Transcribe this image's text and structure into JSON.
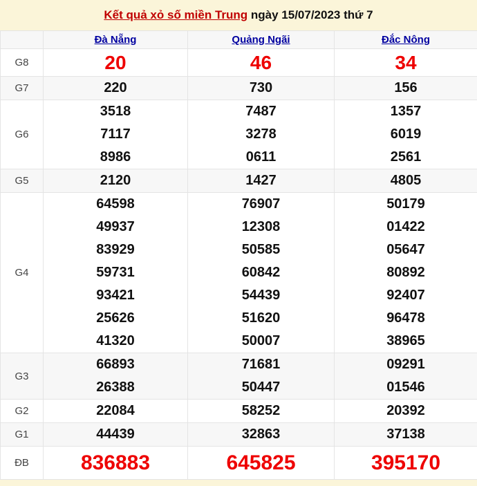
{
  "title": {
    "link_text": "Kết quả xỏ số miền Trung",
    "date_text": " ngày 15/07/2023 thứ 7"
  },
  "table": {
    "columns": [
      "Đà Nẵng",
      "Quảng Ngãi",
      "Đắc Nông"
    ],
    "prizes": [
      {
        "label": "G8",
        "highlight": true,
        "values": [
          [
            "20"
          ],
          [
            "46"
          ],
          [
            "34"
          ]
        ]
      },
      {
        "label": "G7",
        "highlight": false,
        "values": [
          [
            "220"
          ],
          [
            "730"
          ],
          [
            "156"
          ]
        ]
      },
      {
        "label": "G6",
        "highlight": false,
        "values": [
          [
            "3518",
            "7117",
            "8986"
          ],
          [
            "7487",
            "3278",
            "0611"
          ],
          [
            "1357",
            "6019",
            "2561"
          ]
        ]
      },
      {
        "label": "G5",
        "highlight": false,
        "values": [
          [
            "2120"
          ],
          [
            "1427"
          ],
          [
            "4805"
          ]
        ]
      },
      {
        "label": "G4",
        "highlight": false,
        "values": [
          [
            "64598",
            "49937",
            "83929",
            "59731",
            "93421",
            "25626",
            "41320"
          ],
          [
            "76907",
            "12308",
            "50585",
            "60842",
            "54439",
            "51620",
            "50007"
          ],
          [
            "50179",
            "01422",
            "05647",
            "80892",
            "92407",
            "96478",
            "38965"
          ]
        ]
      },
      {
        "label": "G3",
        "highlight": false,
        "values": [
          [
            "66893",
            "26388"
          ],
          [
            "71681",
            "50447"
          ],
          [
            "09291",
            "01546"
          ]
        ]
      },
      {
        "label": "G2",
        "highlight": false,
        "values": [
          [
            "22084"
          ],
          [
            "58252"
          ],
          [
            "20392"
          ]
        ]
      },
      {
        "label": "G1",
        "highlight": false,
        "values": [
          [
            "44439"
          ],
          [
            "32863"
          ],
          [
            "37138"
          ]
        ]
      },
      {
        "label": "ĐB",
        "highlight": true,
        "values": [
          [
            "836883"
          ],
          [
            "645825"
          ],
          [
            "395170"
          ]
        ]
      }
    ]
  },
  "colors": {
    "page_background": "#fbf5d9",
    "title_link_red": "#c00000",
    "header_link_blue": "#0000a0",
    "highlight_red": "#ee0000",
    "row_shade": "#f7f7f7",
    "border": "#e4e4e4"
  }
}
